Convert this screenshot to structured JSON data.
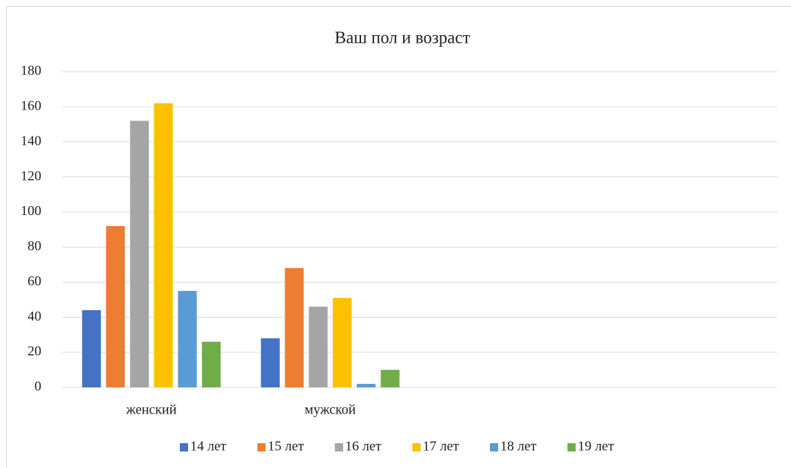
{
  "chart_data": {
    "type": "bar",
    "title": "Ваш пол и возраст",
    "categories": [
      "женский",
      "мужской",
      null,
      null
    ],
    "series": [
      {
        "name": "14 лет",
        "color": "#4472c4",
        "values": [
          44,
          28,
          null,
          null
        ]
      },
      {
        "name": "15 лет",
        "color": "#ed7d31",
        "values": [
          92,
          68,
          null,
          null
        ]
      },
      {
        "name": "16 лет",
        "color": "#a5a5a5",
        "values": [
          152,
          46,
          null,
          null
        ]
      },
      {
        "name": "17 лет",
        "color": "#ffc000",
        "values": [
          162,
          51,
          null,
          null
        ]
      },
      {
        "name": "18 лет",
        "color": "#5b9bd5",
        "values": [
          55,
          2,
          null,
          null
        ]
      },
      {
        "name": "19 лет",
        "color": "#70ad47",
        "values": [
          26,
          10,
          null,
          null
        ]
      }
    ],
    "ylim": [
      0,
      180
    ],
    "yticks": [
      0,
      20,
      40,
      60,
      80,
      100,
      120,
      140,
      160,
      180
    ],
    "grid": true,
    "legend": "bottom"
  }
}
